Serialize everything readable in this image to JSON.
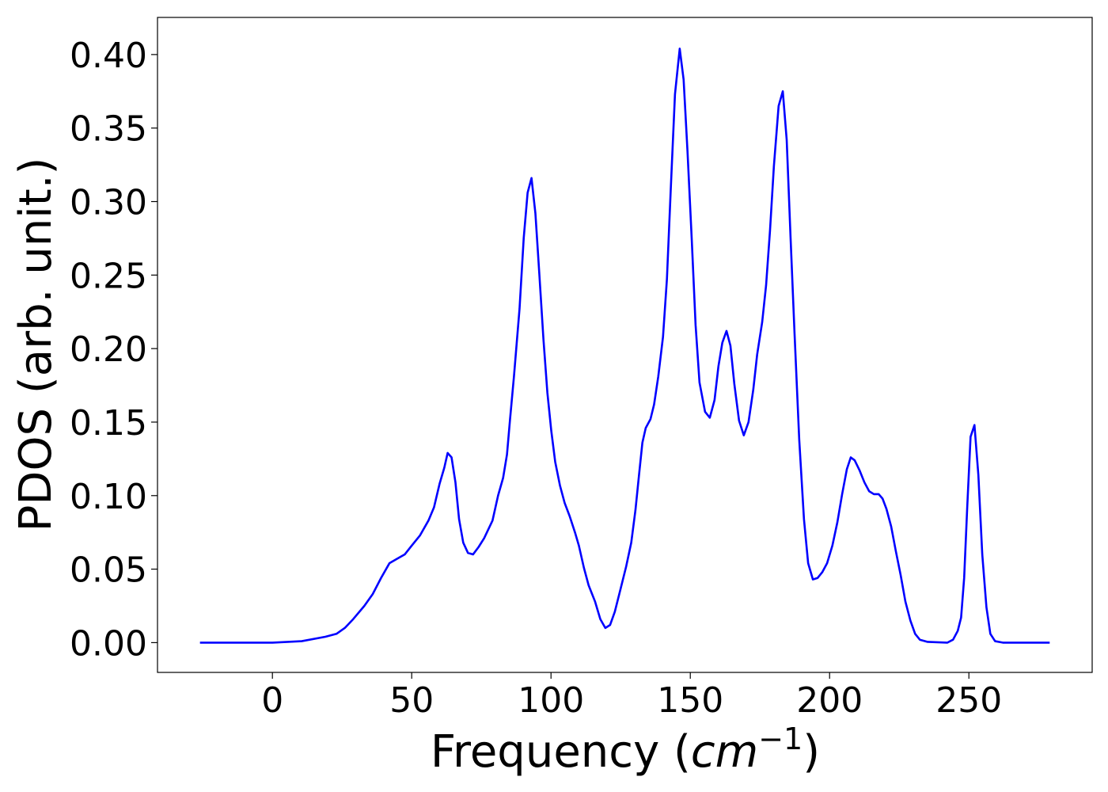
{
  "chart_data": {
    "type": "line",
    "xlabel": [
      "Frequency (",
      "cm",
      "−1",
      ")"
    ],
    "ylabel": "PDOS (arb. unit.)",
    "xlim": [
      -41.25,
      294.25
    ],
    "ylim": [
      -0.02025,
      0.42525
    ],
    "xticks": [
      0,
      50,
      100,
      150,
      200,
      250
    ],
    "yticks": [
      {
        "value": 0,
        "label": "0.00"
      },
      {
        "value": 0.05,
        "label": "0.05"
      },
      {
        "value": 0.1,
        "label": "0.10"
      },
      {
        "value": 0.15,
        "label": "0.15"
      },
      {
        "value": 0.2,
        "label": "0.20"
      },
      {
        "value": 0.25,
        "label": "0.25"
      },
      {
        "value": 0.3,
        "label": "0.30"
      },
      {
        "value": 0.35,
        "label": "0.35"
      },
      {
        "value": 0.4,
        "label": "0.40"
      }
    ],
    "grid": false,
    "series": [
      {
        "color": "#0000ff",
        "x": [
          -26,
          0,
          10.5,
          19,
          23,
          26,
          29,
          33,
          36,
          39,
          42,
          44.7,
          47.5,
          50,
          53,
          56,
          58,
          60,
          61.7,
          62.9,
          64.3,
          65.7,
          67,
          68.5,
          70.2,
          72,
          74,
          76,
          79,
          81,
          82.8,
          84.2,
          85.3,
          86.7,
          88.7,
          90.2,
          91.6,
          93,
          94.4,
          95.8,
          97.3,
          98.7,
          100.1,
          101.5,
          103.2,
          104.9,
          106.7,
          108.6,
          110,
          111.8,
          113.5,
          115.8,
          117.7,
          119.5,
          121.2,
          122.9,
          124.9,
          127,
          128.8,
          130.3,
          131.7,
          132.8,
          134,
          135.7,
          137,
          138.5,
          140.2,
          141.6,
          143,
          144.5,
          146.2,
          147.6,
          149,
          150.5,
          151.9,
          153.3,
          155.3,
          157,
          158.7,
          160.1,
          161.5,
          163,
          164.4,
          165.8,
          167.5,
          169.2,
          170.9,
          172.6,
          174,
          175.8,
          177.2,
          178.6,
          180,
          181.7,
          183.2,
          184.6,
          186,
          187.4,
          189.1,
          190.8,
          192.3,
          194,
          195.7,
          197.4,
          199.1,
          201,
          202.8,
          204.5,
          206.2,
          207.6,
          209,
          210.8,
          212.5,
          214.2,
          215.9,
          217.6,
          219,
          220.4,
          222.1,
          223.8,
          225.5,
          227.2,
          229,
          230.7,
          232.4,
          235.2,
          242.3,
          244.3,
          246,
          247.2,
          248.3,
          249.4,
          250.6,
          252,
          253.4,
          254.8,
          256.3,
          257.7,
          259.4,
          262.2,
          279
        ],
        "values": [
          0,
          0,
          0.001,
          0.004,
          0.006,
          0.01,
          0.016,
          0.025,
          0.033,
          0.044,
          0.054,
          0.057,
          0.06,
          0.066,
          0.073,
          0.083,
          0.092,
          0.108,
          0.119,
          0.129,
          0.126,
          0.109,
          0.084,
          0.068,
          0.061,
          0.06,
          0.065,
          0.071,
          0.083,
          0.1,
          0.112,
          0.128,
          0.152,
          0.181,
          0.227,
          0.275,
          0.306,
          0.316,
          0.292,
          0.251,
          0.206,
          0.17,
          0.144,
          0.123,
          0.107,
          0.095,
          0.086,
          0.075,
          0.066,
          0.051,
          0.039,
          0.028,
          0.016,
          0.01,
          0.012,
          0.021,
          0.036,
          0.052,
          0.068,
          0.09,
          0.116,
          0.136,
          0.146,
          0.152,
          0.162,
          0.181,
          0.208,
          0.247,
          0.309,
          0.373,
          0.404,
          0.383,
          0.334,
          0.275,
          0.216,
          0.177,
          0.157,
          0.153,
          0.165,
          0.188,
          0.204,
          0.212,
          0.202,
          0.176,
          0.151,
          0.141,
          0.15,
          0.172,
          0.196,
          0.218,
          0.243,
          0.28,
          0.324,
          0.365,
          0.375,
          0.342,
          0.275,
          0.211,
          0.138,
          0.084,
          0.054,
          0.043,
          0.044,
          0.048,
          0.054,
          0.066,
          0.082,
          0.101,
          0.118,
          0.126,
          0.124,
          0.117,
          0.109,
          0.103,
          0.101,
          0.101,
          0.098,
          0.091,
          0.079,
          0.062,
          0.046,
          0.028,
          0.015,
          0.006,
          0.002,
          0.0005,
          0,
          0.002,
          0.008,
          0.017,
          0.044,
          0.092,
          0.14,
          0.148,
          0.114,
          0.06,
          0.024,
          0.006,
          0.001,
          0,
          0
        ]
      }
    ]
  }
}
